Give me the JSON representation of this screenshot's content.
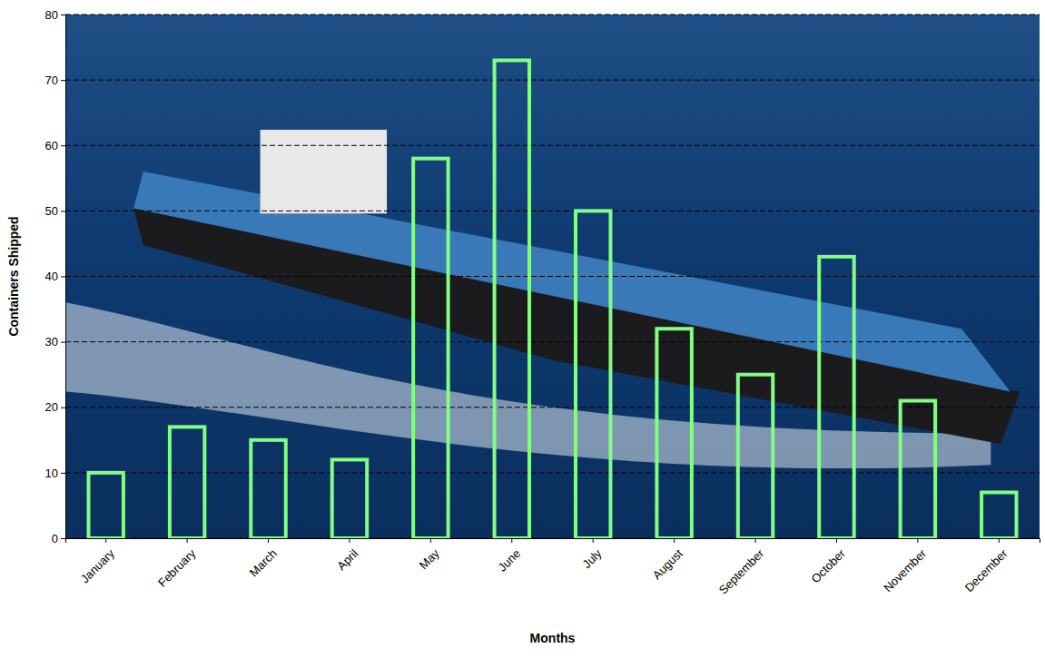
{
  "chart_data": {
    "type": "bar",
    "categories": [
      "January",
      "February",
      "March",
      "April",
      "May",
      "June",
      "July",
      "August",
      "September",
      "October",
      "November",
      "December"
    ],
    "values": [
      10,
      17,
      15,
      12,
      58,
      73,
      50,
      32,
      25,
      43,
      21,
      7
    ],
    "color": "#80ff80",
    "ylim": [
      0,
      80
    ],
    "yticks": [
      0,
      10,
      20,
      30,
      40,
      50,
      60,
      70,
      80
    ],
    "grid": true,
    "x_label": "Months",
    "y_label": "Containers Shipped"
  }
}
